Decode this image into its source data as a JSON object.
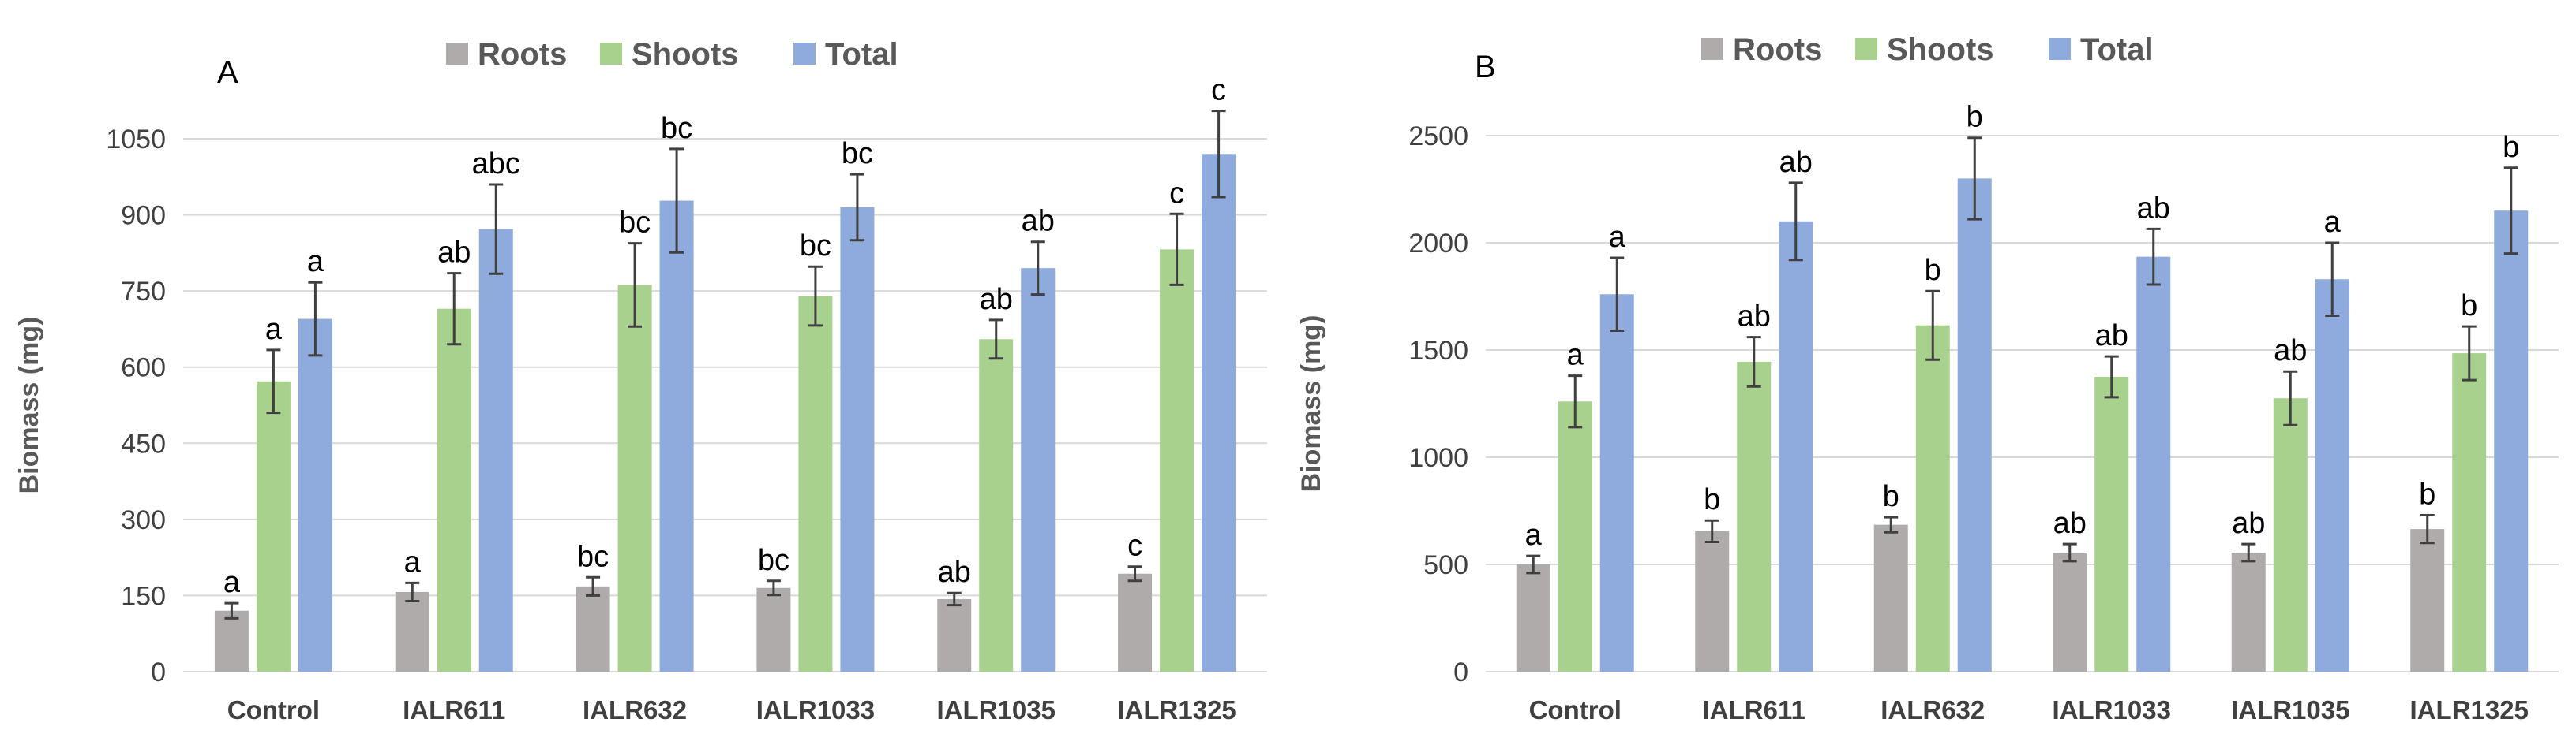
{
  "colors": {
    "Roots": "#AFABAB",
    "Shoots": "#A9D18E",
    "Total": "#8FAADC",
    "grid": "#D9D9D9",
    "error": "#404040"
  },
  "chart_data": [
    {
      "type": "bar",
      "panel": "A",
      "ylabel": "Biomass (mg)",
      "ylim": [
        0,
        1050
      ],
      "yticks": [
        0,
        150,
        300,
        450,
        600,
        750,
        900,
        1050
      ],
      "categories": [
        "Control",
        "IALR611",
        "IALR632",
        "IALR1033",
        "IALR1035",
        "IALR1325"
      ],
      "series": [
        {
          "name": "Roots",
          "values": [
            120,
            157,
            168,
            165,
            143,
            193
          ],
          "errors": [
            15,
            18,
            18,
            14,
            12,
            14
          ],
          "labels": [
            "a",
            "a",
            "bc",
            "bc",
            "ab",
            "c"
          ]
        },
        {
          "name": "Shoots",
          "values": [
            572,
            715,
            762,
            740,
            655,
            832
          ],
          "errors": [
            62,
            70,
            82,
            58,
            38,
            70
          ],
          "labels": [
            "a",
            "ab",
            "bc",
            "bc",
            "ab",
            "c"
          ]
        },
        {
          "name": "Total",
          "values": [
            695,
            872,
            928,
            915,
            795,
            1020
          ],
          "errors": [
            72,
            88,
            102,
            65,
            52,
            85
          ],
          "labels": [
            "a",
            "abc",
            "bc",
            "bc",
            "ab",
            "c"
          ]
        }
      ]
    },
    {
      "type": "bar",
      "panel": "B",
      "ylabel": "Biomass (mg)",
      "ylim": [
        0,
        2500
      ],
      "yticks": [
        0,
        500,
        1000,
        1500,
        2000,
        2500
      ],
      "categories": [
        "Control",
        "IALR611",
        "IALR632",
        "IALR1033",
        "IALR1035",
        "IALR1325"
      ],
      "series": [
        {
          "name": "Roots",
          "values": [
            500,
            655,
            685,
            555,
            555,
            665
          ],
          "errors": [
            40,
            50,
            35,
            40,
            40,
            65
          ],
          "labels": [
            "a",
            "b",
            "b",
            "ab",
            "ab",
            "b"
          ]
        },
        {
          "name": "Shoots",
          "values": [
            1260,
            1445,
            1615,
            1375,
            1275,
            1485
          ],
          "errors": [
            120,
            115,
            160,
            95,
            125,
            125
          ],
          "labels": [
            "a",
            "ab",
            "b",
            "ab",
            "ab",
            "b"
          ]
        },
        {
          "name": "Total",
          "values": [
            1760,
            2100,
            2300,
            1935,
            1830,
            2150
          ],
          "errors": [
            170,
            180,
            190,
            130,
            170,
            200
          ],
          "labels": [
            "a",
            "ab",
            "b",
            "ab",
            "a",
            "b"
          ]
        }
      ]
    }
  ]
}
